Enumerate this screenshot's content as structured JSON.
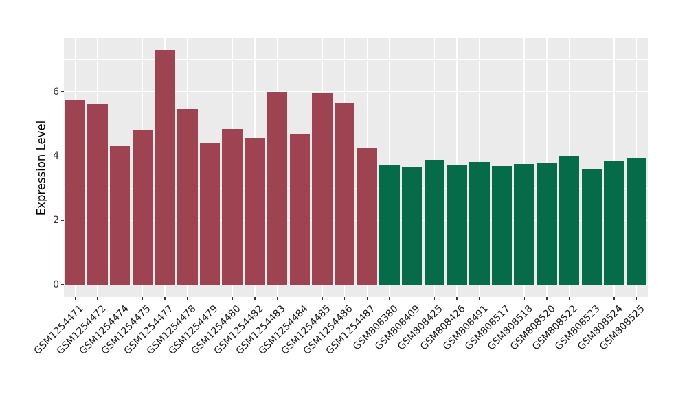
{
  "chart_data": {
    "type": "bar",
    "title": "",
    "xlabel": "",
    "ylabel": "Expression Level",
    "categories": [
      "GSM1254471",
      "GSM1254472",
      "GSM1254474",
      "GSM1254475",
      "GSM1254477",
      "GSM1254478",
      "GSM1254479",
      "GSM1254480",
      "GSM1254482",
      "GSM1254483",
      "GSM1254484",
      "GSM1254485",
      "GSM1254486",
      "GSM1254487",
      "GSM808380",
      "GSM808409",
      "GSM808425",
      "GSM808426",
      "GSM808491",
      "GSM808517",
      "GSM808518",
      "GSM808520",
      "GSM808522",
      "GSM808523",
      "GSM808524",
      "GSM808525"
    ],
    "values": [
      5.76,
      5.61,
      4.3,
      4.79,
      7.29,
      5.45,
      4.39,
      4.83,
      4.57,
      6.0,
      4.7,
      5.97,
      5.65,
      4.27,
      3.74,
      3.66,
      3.89,
      3.7,
      3.81,
      3.68,
      3.76,
      3.8,
      4.0,
      3.59,
      3.84,
      3.94
    ],
    "series": [
      {
        "name": "GSM1254471-GSM1254487",
        "color": "#9E4352",
        "start_index": 0,
        "end_index": 13
      },
      {
        "name": "GSM808380-GSM808525",
        "color": "#066B49",
        "start_index": 14,
        "end_index": 25
      }
    ],
    "yticks": [
      0,
      2,
      4,
      6
    ],
    "minor_gridlines": [
      1,
      3,
      5,
      7
    ],
    "ylim": [
      -0.383,
      7.655
    ],
    "bar_width_fraction": 0.9,
    "grid": true,
    "legend_position": "none",
    "colors": {
      "panel_background": "#EBEBEB",
      "gridline": "#FFFFFF",
      "axis_text": "#333333",
      "x_label_text": "#1a1a1a",
      "axis_title": "#000000",
      "figure_background": "#FFFFFF"
    }
  }
}
